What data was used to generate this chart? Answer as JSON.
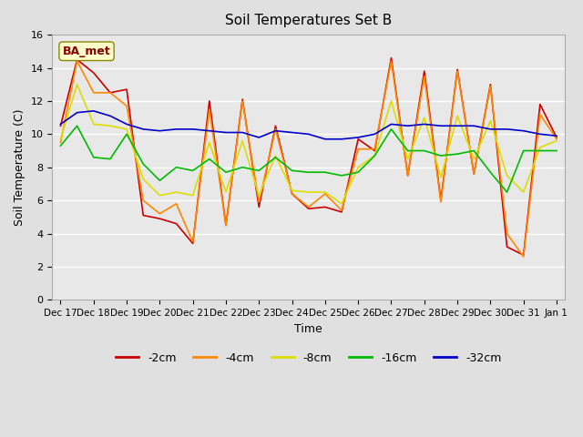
{
  "title": "Soil Temperatures Set B",
  "xlabel": "Time",
  "ylabel": "Soil Temperature (C)",
  "ylim": [
    0,
    16
  ],
  "yticks": [
    0,
    2,
    4,
    6,
    8,
    10,
    12,
    14,
    16
  ],
  "annotation": "BA_met",
  "bg_color": "#e8e8e8",
  "plot_bg": "#e8e8e8",
  "grid_color": "#ffffff",
  "colors": {
    "-2cm": "#cc0000",
    "-4cm": "#ff8800",
    "-8cm": "#dddd00",
    "-16cm": "#00bb00",
    "-32cm": "#0000cc"
  },
  "x_labels": [
    "Dec 17",
    "Dec 18",
    "Dec 19",
    "Dec 20",
    "Dec 21",
    "Dec 22",
    "Dec 23",
    "Dec 24",
    "Dec 25",
    "Dec 26",
    "Dec 27",
    "Dec 28",
    "Dec 29",
    "Dec 30",
    "Dec 31",
    "Jan 1"
  ],
  "series": {
    "-2cm": [
      10.5,
      14.5,
      13.7,
      12.5,
      12.7,
      5.1,
      4.9,
      4.6,
      3.4,
      12.0,
      4.5,
      12.1,
      5.6,
      10.5,
      6.4,
      5.5,
      5.6,
      5.3,
      9.7,
      9.0,
      14.6,
      7.5,
      13.8,
      6.0,
      13.9,
      7.6,
      13.0,
      3.2,
      2.7,
      11.8,
      9.8
    ],
    "-4cm": [
      9.5,
      14.4,
      12.5,
      12.5,
      11.7,
      6.0,
      5.2,
      5.8,
      3.5,
      11.5,
      4.5,
      12.0,
      5.9,
      10.3,
      6.4,
      5.6,
      6.4,
      5.4,
      9.1,
      9.1,
      14.4,
      7.5,
      13.5,
      5.9,
      13.8,
      7.6,
      12.9,
      4.0,
      2.6,
      11.2,
      9.7
    ],
    "-8cm": [
      9.7,
      13.0,
      10.6,
      10.5,
      10.3,
      7.3,
      6.3,
      6.5,
      6.3,
      9.5,
      6.5,
      9.6,
      6.3,
      8.7,
      6.6,
      6.5,
      6.5,
      5.8,
      8.0,
      8.7,
      12.0,
      8.5,
      11.0,
      7.4,
      11.1,
      8.5,
      10.8,
      7.5,
      6.5,
      9.2,
      9.6
    ],
    "-16cm": [
      9.3,
      10.5,
      8.6,
      8.5,
      10.0,
      8.2,
      7.2,
      8.0,
      7.8,
      8.5,
      7.7,
      8.0,
      7.8,
      8.6,
      7.8,
      7.7,
      7.7,
      7.5,
      7.7,
      8.7,
      10.3,
      9.0,
      9.0,
      8.7,
      8.8,
      9.0,
      7.7,
      6.5,
      9.0,
      9.0,
      9.0
    ],
    "-32cm": [
      10.6,
      11.3,
      11.4,
      11.1,
      10.6,
      10.3,
      10.2,
      10.3,
      10.3,
      10.2,
      10.1,
      10.1,
      9.8,
      10.2,
      10.1,
      10.0,
      9.7,
      9.7,
      9.8,
      10.0,
      10.6,
      10.5,
      10.6,
      10.5,
      10.5,
      10.5,
      10.3,
      10.3,
      10.2,
      10.0,
      9.9
    ]
  }
}
